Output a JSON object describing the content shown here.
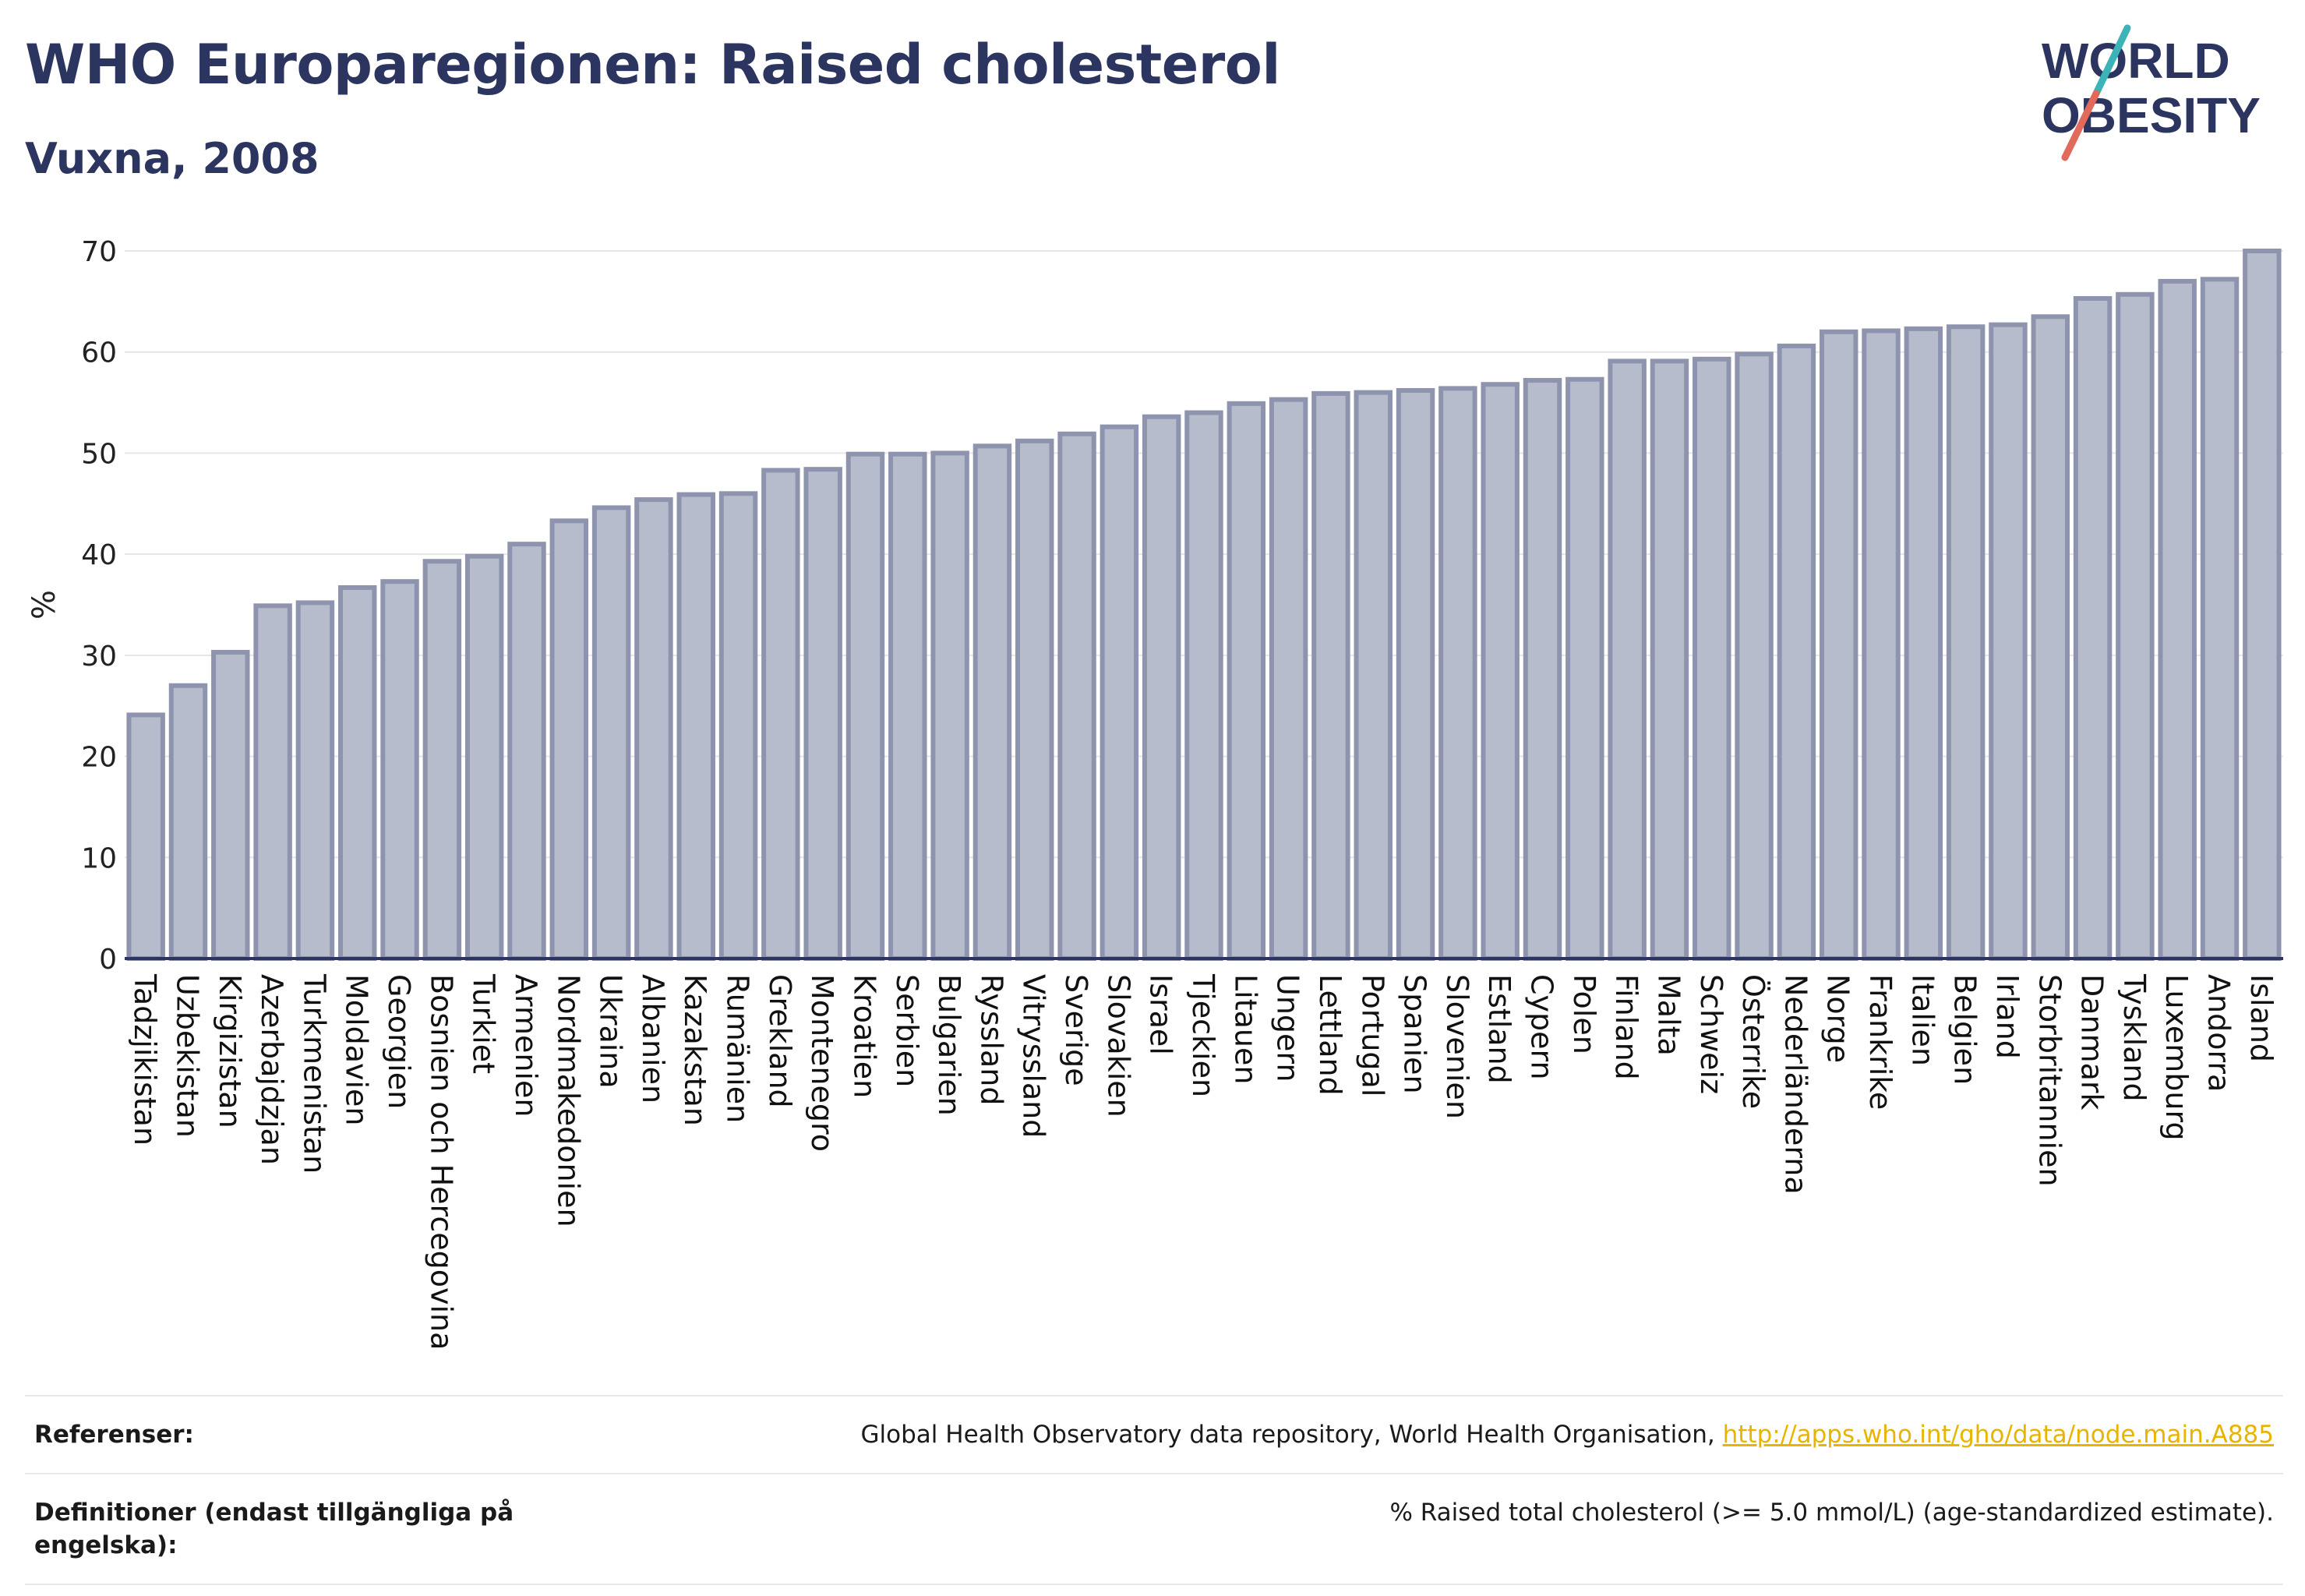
{
  "header": {
    "title": "WHO Europaregionen: Raised cholesterol",
    "subtitle": "Vuxna, 2008",
    "logo_line1": "WORLD",
    "logo_line2": "OBESITY"
  },
  "chart_data": {
    "type": "bar",
    "ylabel": "%",
    "xlabel": "",
    "ylim": [
      0,
      70
    ],
    "yticks": [
      0,
      10,
      20,
      30,
      40,
      50,
      60,
      70
    ],
    "grid": true,
    "bar_color": "#b7bccd",
    "bar_edge_color": "#8e94ae",
    "categories": [
      "Tadzjikistan",
      "Uzbekistan",
      "Kirgizistan",
      "Azerbajdzjan",
      "Turkmenistan",
      "Moldavien",
      "Georgien",
      "Bosnien och Hercegovina",
      "Turkiet",
      "Armenien",
      "Nordmakedonien",
      "Ukraina",
      "Albanien",
      "Kazakstan",
      "Rumänien",
      "Grekland",
      "Montenegro",
      "Kroatien",
      "Serbien",
      "Bulgarien",
      "Ryssland",
      "Vitryssland",
      "Sverige",
      "Slovakien",
      "Israel",
      "Tjeckien",
      "Litauen",
      "Ungern",
      "Lettland",
      "Portugal",
      "Spanien",
      "Slovenien",
      "Estland",
      "Cypern",
      "Polen",
      "Finland",
      "Malta",
      "Schweiz",
      "Österrike",
      "Nederländerna",
      "Norge",
      "Frankrike",
      "Italien",
      "Belgien",
      "Irland",
      "Storbritannien",
      "Danmark",
      "Tyskland",
      "Luxemburg",
      "Andorra",
      "Island"
    ],
    "values": [
      24.1,
      27.0,
      30.3,
      34.9,
      35.2,
      36.7,
      37.3,
      39.3,
      39.8,
      41.0,
      43.3,
      44.6,
      45.4,
      45.9,
      46.0,
      48.3,
      48.4,
      49.9,
      49.9,
      50.0,
      50.7,
      51.2,
      51.9,
      52.6,
      53.6,
      54.0,
      54.9,
      55.3,
      55.9,
      56.0,
      56.2,
      56.4,
      56.8,
      57.2,
      57.3,
      59.1,
      59.1,
      59.3,
      59.8,
      60.6,
      62.0,
      62.1,
      62.3,
      62.5,
      62.7,
      63.5,
      65.3,
      65.7,
      67.0,
      67.2,
      70.0
    ]
  },
  "references": {
    "ref_label": "Referenser:",
    "ref_text": "Global Health Observatory data repository, World Health Organisation,",
    "ref_link": "http://apps.who.int/gho/data/node.main.A885",
    "def_label": "Definitioner (endast tillgängliga på engelska):",
    "def_text": "% Raised total cholesterol (>= 5.0 mmol/L) (age-standardized estimate)."
  },
  "colors": {
    "title": "#2b3560",
    "logo_slash_teal": "#3bb3b7",
    "logo_slash_red": "#e26a5a",
    "link": "#e8b400"
  }
}
